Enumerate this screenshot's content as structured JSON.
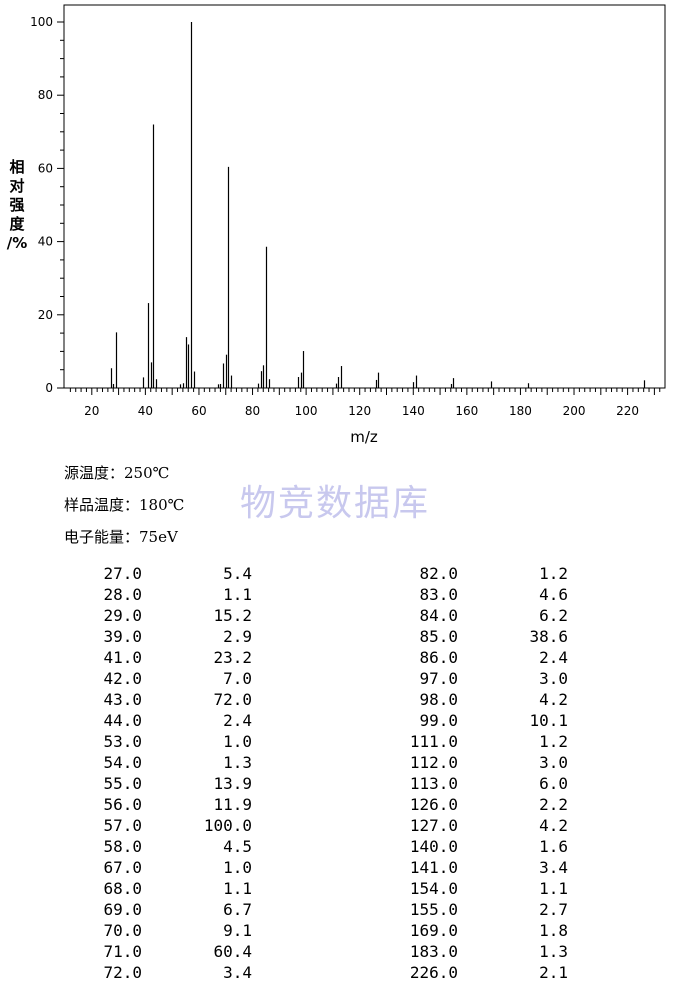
{
  "chart_data": {
    "type": "bar",
    "xlabel": "m/z",
    "ylabel": "相对强度/%",
    "xlim": [
      11,
      233
    ],
    "ylim": [
      0,
      100
    ],
    "xticks": [
      20,
      40,
      60,
      80,
      100,
      120,
      140,
      160,
      180,
      200,
      220
    ],
    "yticks": [
      0,
      20,
      40,
      60,
      80,
      100
    ],
    "grid": false,
    "x": [
      27,
      28,
      29,
      39,
      41,
      42,
      43,
      44,
      53,
      54,
      55,
      56,
      57,
      58,
      67,
      68,
      69,
      70,
      71,
      72,
      82,
      83,
      84,
      85,
      86,
      97,
      98,
      99,
      111,
      112,
      113,
      126,
      127,
      140,
      141,
      154,
      155,
      169,
      183,
      226
    ],
    "values": [
      5.4,
      1.1,
      15.2,
      2.9,
      23.2,
      7.0,
      72.0,
      2.4,
      1.0,
      1.3,
      13.9,
      11.9,
      100.0,
      4.5,
      1.0,
      1.1,
      6.7,
      9.1,
      60.4,
      3.4,
      1.2,
      4.6,
      6.2,
      38.6,
      2.4,
      3.0,
      4.2,
      10.1,
      1.2,
      3.0,
      6.0,
      2.2,
      4.2,
      1.6,
      3.4,
      1.1,
      2.7,
      1.8,
      1.3,
      2.1
    ]
  },
  "ylabel_chars": [
    "相",
    "对",
    "强",
    "度",
    "/%"
  ],
  "watermark": "物竞数据库",
  "conditions": {
    "source_temp": "源温度：250℃",
    "sample_temp": "样品温度：180℃",
    "electron_energy": "电子能量：75eV"
  },
  "peak_table": {
    "left": [
      [
        "27.0",
        "5.4"
      ],
      [
        "28.0",
        "1.1"
      ],
      [
        "29.0",
        "15.2"
      ],
      [
        "39.0",
        "2.9"
      ],
      [
        "41.0",
        "23.2"
      ],
      [
        "42.0",
        "7.0"
      ],
      [
        "43.0",
        "72.0"
      ],
      [
        "44.0",
        "2.4"
      ],
      [
        "53.0",
        "1.0"
      ],
      [
        "54.0",
        "1.3"
      ],
      [
        "55.0",
        "13.9"
      ],
      [
        "56.0",
        "11.9"
      ],
      [
        "57.0",
        "100.0"
      ],
      [
        "58.0",
        "4.5"
      ],
      [
        "67.0",
        "1.0"
      ],
      [
        "68.0",
        "1.1"
      ],
      [
        "69.0",
        "6.7"
      ],
      [
        "70.0",
        "9.1"
      ],
      [
        "71.0",
        "60.4"
      ],
      [
        "72.0",
        "3.4"
      ]
    ],
    "right": [
      [
        "82.0",
        "1.2"
      ],
      [
        "83.0",
        "4.6"
      ],
      [
        "84.0",
        "6.2"
      ],
      [
        "85.0",
        "38.6"
      ],
      [
        "86.0",
        "2.4"
      ],
      [
        "97.0",
        "3.0"
      ],
      [
        "98.0",
        "4.2"
      ],
      [
        "99.0",
        "10.1"
      ],
      [
        "111.0",
        "1.2"
      ],
      [
        "112.0",
        "3.0"
      ],
      [
        "113.0",
        "6.0"
      ],
      [
        "126.0",
        "2.2"
      ],
      [
        "127.0",
        "4.2"
      ],
      [
        "140.0",
        "1.6"
      ],
      [
        "141.0",
        "3.4"
      ],
      [
        "154.0",
        "1.1"
      ],
      [
        "155.0",
        "2.7"
      ],
      [
        "169.0",
        "1.8"
      ],
      [
        "183.0",
        "1.3"
      ],
      [
        "226.0",
        "2.1"
      ]
    ]
  }
}
